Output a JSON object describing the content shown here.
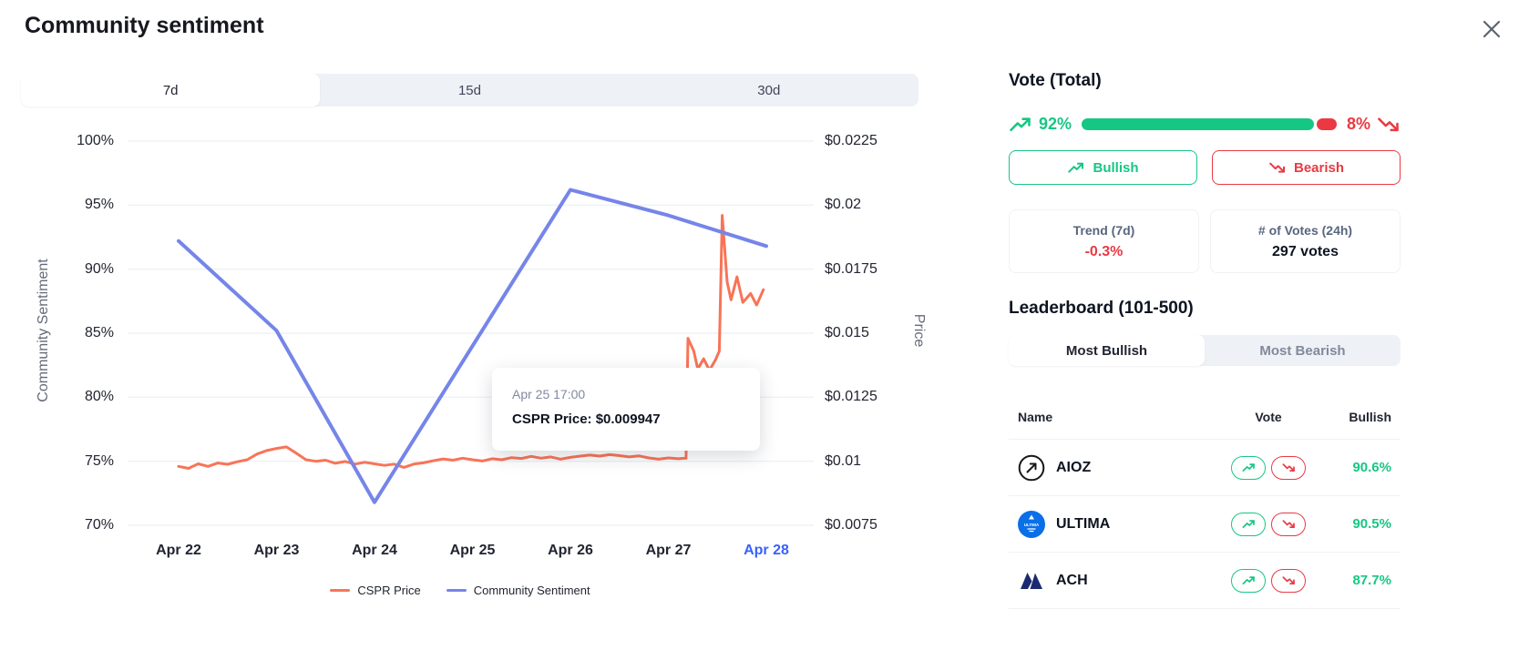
{
  "header": {
    "title": "Community sentiment"
  },
  "chart": {
    "tabs": [
      {
        "label": "7d",
        "active": true
      },
      {
        "label": "15d",
        "active": false
      },
      {
        "label": "30d",
        "active": false
      }
    ],
    "tooltip": {
      "time": "Apr 25 17:00",
      "text": "CSPR Price: $0.009947"
    },
    "legend": [
      {
        "label": "CSPR Price",
        "color": "#f87457"
      },
      {
        "label": "Community Sentiment",
        "color": "#7585e8"
      }
    ]
  },
  "chart_data": {
    "type": "line",
    "title": "Community sentiment (7d)",
    "x_labels": [
      "Apr 22",
      "Apr 23",
      "Apr 24",
      "Apr 25",
      "Apr 26",
      "Apr 27",
      "Apr 28"
    ],
    "highlighted_x_label": "Apr 28",
    "grid": true,
    "legend_position": "bottom",
    "left_axis": {
      "label": "Community Sentiment",
      "min": 70,
      "max": 100,
      "ticks": [
        "100%",
        "95%",
        "90%",
        "85%",
        "80%",
        "75%",
        "70%"
      ]
    },
    "right_axis": {
      "label": "Price",
      "min": 0.0075,
      "max": 0.0225,
      "ticks": [
        "$0.0225",
        "$0.02",
        "$0.0175",
        "$0.015",
        "$0.0125",
        "$0.01",
        "$0.0075"
      ]
    },
    "series": [
      {
        "name": "CSPR Price",
        "axis": "right",
        "color": "#f87457",
        "stroke_width": 3,
        "x": [
          0,
          0.1,
          0.2,
          0.3,
          0.4,
          0.5,
          0.6,
          0.7,
          0.8,
          0.9,
          1,
          1.1,
          1.2,
          1.3,
          1.4,
          1.5,
          1.6,
          1.7,
          1.8,
          1.9,
          2,
          2.1,
          2.2,
          2.3,
          2.4,
          2.5,
          2.6,
          2.7,
          2.8,
          2.9,
          3,
          3.1,
          3.2,
          3.3,
          3.4,
          3.5,
          3.6,
          3.7,
          3.8,
          3.9,
          4,
          4.1,
          4.2,
          4.3,
          4.4,
          4.5,
          4.6,
          4.7,
          4.8,
          4.9,
          5,
          5.1,
          5.18,
          5.2,
          5.26,
          5.3,
          5.36,
          5.42,
          5.48,
          5.52,
          5.55,
          5.6,
          5.64,
          5.7,
          5.76,
          5.84,
          5.9,
          5.97
        ],
        "values": [
          0.0098,
          0.00972,
          0.0099,
          0.0098,
          0.00993,
          0.00988,
          0.00998,
          0.01006,
          0.01028,
          0.01042,
          0.0105,
          0.01056,
          0.01032,
          0.01006,
          0.01,
          0.01004,
          0.00992,
          0.00999,
          0.00989,
          0.00996,
          0.0099,
          0.00984,
          0.00989,
          0.00976,
          0.00989,
          0.00994,
          0.01002,
          0.01009,
          0.01004,
          0.01012,
          0.01006,
          0.01001,
          0.0101,
          0.01006,
          0.01014,
          0.01011,
          0.01019,
          0.01012,
          0.01017,
          0.01008,
          0.01015,
          0.0102,
          0.01024,
          0.0102,
          0.01026,
          0.01022,
          0.01017,
          0.01021,
          0.01013,
          0.01008,
          0.01013,
          0.0101,
          0.01012,
          0.0148,
          0.0143,
          0.0136,
          0.014,
          0.01355,
          0.01395,
          0.0143,
          0.0196,
          0.017,
          0.0163,
          0.0172,
          0.0162,
          0.01655,
          0.0161,
          0.0167
        ]
      },
      {
        "name": "Community Sentiment",
        "axis": "left",
        "color": "#7585e8",
        "stroke_width": 4,
        "x": [
          0,
          1,
          2,
          4,
          5,
          6
        ],
        "values": [
          92.2,
          85.2,
          71.8,
          96.2,
          94.2,
          91.8
        ]
      }
    ]
  },
  "vote": {
    "title": "Vote (Total)",
    "bullish_pct": "92%",
    "bearish_pct": "8%",
    "bullish_value": 92,
    "bearish_value": 8,
    "bullish_button": "Bullish",
    "bearish_button": "Bearish",
    "stats": [
      {
        "label": "Trend (7d)",
        "value": "-0.3%"
      },
      {
        "label": "# of Votes (24h)",
        "value": "297 votes"
      }
    ]
  },
  "leaderboard": {
    "title": "Leaderboard (101-500)",
    "tabs": [
      {
        "label": "Most Bullish",
        "active": true
      },
      {
        "label": "Most Bearish",
        "active": false
      }
    ],
    "columns": [
      "Name",
      "Vote",
      "Bullish"
    ],
    "rows": [
      {
        "name": "AIOZ",
        "bullish": "90.6%"
      },
      {
        "name": "ULTIMA",
        "bullish": "90.5%"
      },
      {
        "name": "ACH",
        "bullish": "87.7%"
      }
    ]
  },
  "colors": {
    "green": "#16c784",
    "red": "#ea3943",
    "accent_blue": "#3861fb",
    "price_line": "#f87457",
    "sentiment_line": "#7585e8"
  }
}
